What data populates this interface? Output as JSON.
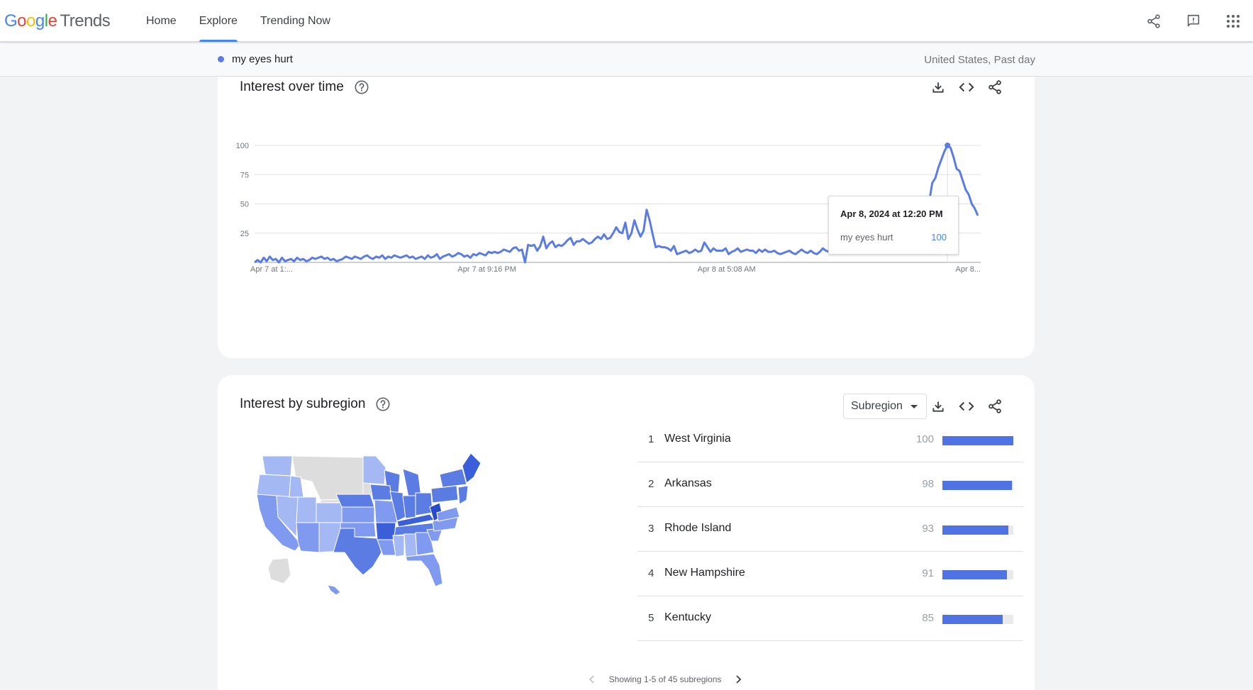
{
  "header": {
    "logo_google_letters": [
      "G",
      "o",
      "o",
      "g",
      "l",
      "e"
    ],
    "logo_product": "Trends",
    "nav": [
      {
        "label": "Home",
        "active": false
      },
      {
        "label": "Explore",
        "active": true
      },
      {
        "label": "Trending Now",
        "active": false
      }
    ],
    "icons": [
      "share-icon",
      "feedback-icon",
      "apps-grid-icon"
    ]
  },
  "comparison": {
    "term": "my eyes hurt",
    "term_color": "#5b7de3",
    "scope": "United States, Past day"
  },
  "interest_over_time": {
    "title": "Interest over time",
    "actions": [
      "download-icon",
      "embed-icon",
      "share-icon"
    ],
    "tooltip": {
      "date": "Apr 8, 2024 at 12:20 PM",
      "term": "my eyes hurt",
      "value": "100"
    }
  },
  "chart_data": {
    "type": "line",
    "title": "Interest over time",
    "xlabel": "",
    "ylabel": "",
    "ylim": [
      0,
      100
    ],
    "yticks": [
      100,
      75,
      50,
      25
    ],
    "x_tick_labels": [
      "Apr 7 at 1:...",
      "Apr 7 at 9:16 PM",
      "Apr 8 at 5:08 AM",
      "Apr 8..."
    ],
    "grid": true,
    "series": [
      {
        "name": "my eyes hurt",
        "color": "#5b7de3",
        "values": [
          0,
          2,
          0,
          4,
          1,
          5,
          2,
          3,
          0,
          4,
          1,
          2,
          3,
          1,
          4,
          2,
          3,
          1,
          2,
          4,
          3,
          4,
          5,
          3,
          4,
          2,
          3,
          1,
          2,
          3,
          5,
          4,
          3,
          5,
          4,
          3,
          5,
          6,
          4,
          3,
          5,
          4,
          6,
          3,
          5,
          4,
          6,
          5,
          4,
          5,
          6,
          4,
          5,
          3,
          4,
          5,
          3,
          6,
          4,
          5,
          7,
          3,
          5,
          6,
          7,
          5,
          6,
          8,
          7,
          5,
          6,
          4,
          7,
          6,
          8,
          7,
          6,
          9,
          8,
          9,
          8,
          9,
          11,
          10,
          9,
          12,
          13,
          10,
          11,
          0,
          15,
          14,
          15,
          10,
          14,
          22,
          12,
          16,
          18,
          13,
          15,
          14,
          16,
          19,
          21,
          15,
          18,
          18,
          20,
          18,
          16,
          17,
          20,
          22,
          20,
          24,
          20,
          21,
          25,
          30,
          26,
          25,
          34,
          20,
          25,
          36,
          28,
          22,
          27,
          45,
          36,
          24,
          13,
          14,
          13,
          13,
          12,
          10,
          14,
          7,
          8,
          9,
          10,
          8,
          9,
          11,
          9,
          10,
          17,
          13,
          9,
          12,
          10,
          10,
          10,
          12,
          7,
          9,
          10,
          12,
          9,
          10,
          11,
          10,
          10,
          8,
          11,
          9,
          11,
          9,
          9,
          10,
          8,
          7,
          8,
          9,
          10,
          8,
          7,
          9,
          11,
          9,
          8,
          10,
          8,
          7,
          9,
          12,
          10,
          9,
          11,
          10,
          8,
          12,
          11,
          12,
          11,
          13,
          12,
          10,
          14,
          13,
          12,
          13,
          12,
          11,
          10,
          14,
          11,
          25,
          16,
          18,
          20,
          23,
          25,
          26,
          28,
          30,
          34,
          33,
          42,
          50,
          52,
          68,
          72,
          81,
          88,
          95,
          100,
          98,
          90,
          80,
          78,
          70,
          62,
          58,
          50,
          46,
          40
        ]
      }
    ],
    "highlight": {
      "label": "Apr 8, 2024 at 12:20 PM",
      "value": 100
    }
  },
  "subregion": {
    "title": "Interest by subregion",
    "select_label": "Subregion",
    "actions": [
      "download-icon",
      "embed-icon",
      "share-icon"
    ],
    "rows": [
      {
        "rank": "1",
        "name": "West Virginia",
        "value": 100
      },
      {
        "rank": "2",
        "name": "Arkansas",
        "value": 98
      },
      {
        "rank": "3",
        "name": "Rhode Island",
        "value": 93
      },
      {
        "rank": "4",
        "name": "New Hampshire",
        "value": 91
      },
      {
        "rank": "5",
        "name": "Kentucky",
        "value": 85
      }
    ],
    "pager_text": "Showing 1-5 of 45 subregions",
    "map_colors": {
      "light": "#a4b8f3",
      "mid": "#7f9aef",
      "dark": "#5b7de3",
      "darkest": "#3b5fd8",
      "nodata": "#dddddd"
    }
  }
}
